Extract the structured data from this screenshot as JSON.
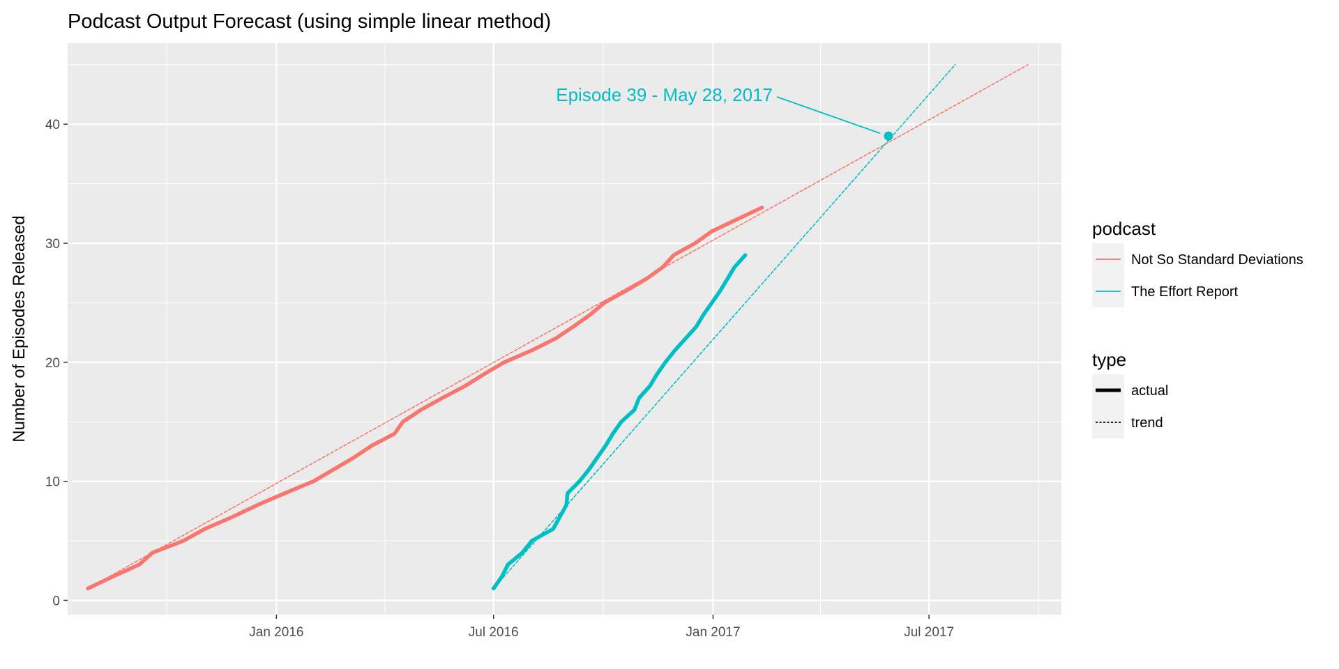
{
  "chart_data": {
    "type": "line",
    "title": "Podcast Output Forecast (using simple linear method)",
    "xlabel": "",
    "ylabel": "Number of Episodes Released",
    "x_axis_type": "date",
    "xlim": [
      "2015-07-10",
      "2017-10-20"
    ],
    "ylim": [
      -1.2,
      46.8
    ],
    "x_ticks": [
      {
        "date": "2016-01-01",
        "label": "Jan 2016"
      },
      {
        "date": "2016-07-01",
        "label": "Jul 2016"
      },
      {
        "date": "2017-01-01",
        "label": "Jan 2017"
      },
      {
        "date": "2017-07-01",
        "label": "Jul 2017"
      }
    ],
    "x_minor_ticks": [
      "2015-10-01",
      "2016-04-01",
      "2016-10-01",
      "2017-04-01",
      "2017-10-01"
    ],
    "y_ticks": [
      0,
      10,
      20,
      30,
      40
    ],
    "y_minor_ticks": [
      5,
      15,
      25,
      35,
      45
    ],
    "grid": true,
    "legend_position": "right",
    "series": [
      {
        "name": "Not So Standard Deviations",
        "type": "actual",
        "color": "#F8766D",
        "points": [
          [
            "2015-07-27",
            1
          ],
          [
            "2015-08-17",
            2
          ],
          [
            "2015-09-08",
            3
          ],
          [
            "2015-09-19",
            4
          ],
          [
            "2015-10-15",
            5
          ],
          [
            "2015-11-02",
            6
          ],
          [
            "2015-11-25",
            7
          ],
          [
            "2015-12-16",
            8
          ],
          [
            "2016-01-08",
            9
          ],
          [
            "2016-02-01",
            10
          ],
          [
            "2016-02-18",
            11
          ],
          [
            "2016-03-06",
            12
          ],
          [
            "2016-03-21",
            13
          ],
          [
            "2016-04-09",
            14
          ],
          [
            "2016-04-16",
            15
          ],
          [
            "2016-05-01",
            16
          ],
          [
            "2016-05-19",
            17
          ],
          [
            "2016-06-07",
            18
          ],
          [
            "2016-06-23",
            19
          ],
          [
            "2016-07-10",
            20
          ],
          [
            "2016-08-02",
            21
          ],
          [
            "2016-08-22",
            22
          ],
          [
            "2016-09-06",
            23
          ],
          [
            "2016-09-20",
            24
          ],
          [
            "2016-10-02",
            25
          ],
          [
            "2016-10-20",
            26
          ],
          [
            "2016-11-06",
            27
          ],
          [
            "2016-11-20",
            28
          ],
          [
            "2016-11-29",
            29
          ],
          [
            "2016-12-17",
            30
          ],
          [
            "2016-12-31",
            31
          ],
          [
            "2017-01-21",
            32
          ],
          [
            "2017-02-11",
            33
          ]
        ]
      },
      {
        "name": "Not So Standard Deviations",
        "type": "trend",
        "color": "#F8766D",
        "points": [
          [
            "2015-07-27",
            1
          ],
          [
            "2017-09-22",
            45
          ]
        ]
      },
      {
        "name": "The Effort Report",
        "type": "actual",
        "color": "#00BFC4",
        "points": [
          [
            "2016-07-01",
            1
          ],
          [
            "2016-07-08",
            2
          ],
          [
            "2016-07-13",
            3
          ],
          [
            "2016-07-25",
            4
          ],
          [
            "2016-08-02",
            5
          ],
          [
            "2016-08-20",
            6
          ],
          [
            "2016-08-31",
            8
          ],
          [
            "2016-09-01",
            9
          ],
          [
            "2016-09-11",
            10
          ],
          [
            "2016-09-19",
            11
          ],
          [
            "2016-09-26",
            12
          ],
          [
            "2016-10-03",
            13
          ],
          [
            "2016-10-09",
            14
          ],
          [
            "2016-10-16",
            15
          ],
          [
            "2016-10-27",
            16
          ],
          [
            "2016-10-31",
            17
          ],
          [
            "2016-11-09",
            18
          ],
          [
            "2016-11-15",
            19
          ],
          [
            "2016-11-22",
            20
          ],
          [
            "2016-11-30",
            21
          ],
          [
            "2016-12-09",
            22
          ],
          [
            "2016-12-18",
            23
          ],
          [
            "2016-12-24",
            24
          ],
          [
            "2016-12-31",
            25
          ],
          [
            "2017-01-07",
            26
          ],
          [
            "2017-01-13",
            27
          ],
          [
            "2017-01-19",
            28
          ],
          [
            "2017-01-28",
            29
          ]
        ]
      },
      {
        "name": "The Effort Report",
        "type": "trend",
        "color": "#00BFC4",
        "points": [
          [
            "2016-07-01",
            1
          ],
          [
            "2017-07-23",
            45
          ]
        ]
      }
    ],
    "annotations": [
      {
        "text": "Episode 39  -  May 28, 2017",
        "point": [
          "2017-05-28",
          39
        ],
        "color": "#00BFC4"
      }
    ],
    "legends": [
      {
        "title": "podcast",
        "entries": [
          {
            "label": "Not So Standard Deviations",
            "color": "#F8766D"
          },
          {
            "label": "The Effort Report",
            "color": "#00BFC4"
          }
        ]
      },
      {
        "title": "type",
        "entries": [
          {
            "label": "actual",
            "style": "solid"
          },
          {
            "label": "trend",
            "style": "dashed"
          }
        ]
      }
    ]
  }
}
